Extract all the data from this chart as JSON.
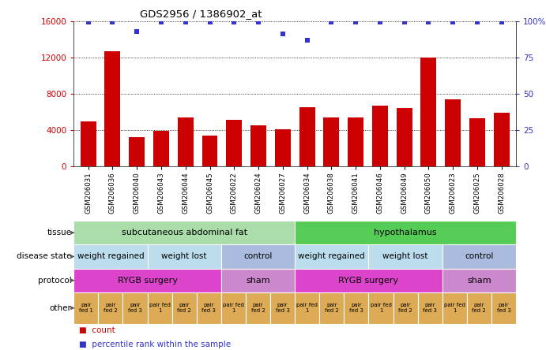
{
  "title": "GDS2956 / 1386902_at",
  "samples": [
    "GSM206031",
    "GSM206036",
    "GSM206040",
    "GSM206043",
    "GSM206044",
    "GSM206045",
    "GSM206022",
    "GSM206024",
    "GSM206027",
    "GSM206034",
    "GSM206038",
    "GSM206041",
    "GSM206046",
    "GSM206049",
    "GSM206050",
    "GSM206023",
    "GSM206025",
    "GSM206028"
  ],
  "counts": [
    5000,
    12700,
    3200,
    3900,
    5400,
    3400,
    5100,
    4500,
    4100,
    6500,
    5400,
    5400,
    6700,
    6400,
    12000,
    7400,
    5300,
    5900
  ],
  "percentile_ranks": [
    99,
    99,
    93,
    99,
    99,
    99,
    99,
    99,
    91,
    87,
    99,
    99,
    99,
    99,
    99,
    99,
    99,
    99
  ],
  "bar_color": "#cc0000",
  "dot_color": "#3333cc",
  "ylim_left": [
    0,
    16000
  ],
  "ylim_right": [
    0,
    100
  ],
  "yticks_left": [
    0,
    4000,
    8000,
    12000,
    16000
  ],
  "yticks_right": [
    0,
    25,
    50,
    75,
    100
  ],
  "ytick_labels_right": [
    "0",
    "25",
    "50",
    "75",
    "100%"
  ],
  "tissue_row": {
    "label": "tissue",
    "spans": [
      {
        "text": "subcutaneous abdominal fat",
        "start": 0,
        "end": 9,
        "color": "#aaddaa"
      },
      {
        "text": "hypothalamus",
        "start": 9,
        "end": 18,
        "color": "#55cc55"
      }
    ]
  },
  "disease_state_row": {
    "label": "disease state",
    "spans": [
      {
        "text": "weight regained",
        "start": 0,
        "end": 3,
        "color": "#bbddee"
      },
      {
        "text": "weight lost",
        "start": 3,
        "end": 6,
        "color": "#bbddee"
      },
      {
        "text": "control",
        "start": 6,
        "end": 9,
        "color": "#aabbdd"
      },
      {
        "text": "weight regained",
        "start": 9,
        "end": 12,
        "color": "#bbddee"
      },
      {
        "text": "weight lost",
        "start": 12,
        "end": 15,
        "color": "#bbddee"
      },
      {
        "text": "control",
        "start": 15,
        "end": 18,
        "color": "#aabbdd"
      }
    ]
  },
  "protocol_row": {
    "label": "protocol",
    "spans": [
      {
        "text": "RYGB surgery",
        "start": 0,
        "end": 6,
        "color": "#dd44cc"
      },
      {
        "text": "sham",
        "start": 6,
        "end": 9,
        "color": "#cc88cc"
      },
      {
        "text": "RYGB surgery",
        "start": 9,
        "end": 15,
        "color": "#dd44cc"
      },
      {
        "text": "sham",
        "start": 15,
        "end": 18,
        "color": "#cc88cc"
      }
    ]
  },
  "other_row": {
    "label": "other",
    "cells": [
      {
        "text": "pair\nfed 1",
        "color": "#ddaa55"
      },
      {
        "text": "pair\nfed 2",
        "color": "#ddaa55"
      },
      {
        "text": "pair\nfed 3",
        "color": "#ddaa55"
      },
      {
        "text": "pair fed\n1",
        "color": "#ddaa55"
      },
      {
        "text": "pair\nfed 2",
        "color": "#ddaa55"
      },
      {
        "text": "pair\nfed 3",
        "color": "#ddaa55"
      },
      {
        "text": "pair fed\n1",
        "color": "#ddaa55"
      },
      {
        "text": "pair\nfed 2",
        "color": "#ddaa55"
      },
      {
        "text": "pair\nfed 3",
        "color": "#ddaa55"
      },
      {
        "text": "pair fed\n1",
        "color": "#ddaa55"
      },
      {
        "text": "pair\nfed 2",
        "color": "#ddaa55"
      },
      {
        "text": "pair\nfed 3",
        "color": "#ddaa55"
      },
      {
        "text": "pair fed\n1",
        "color": "#ddaa55"
      },
      {
        "text": "pair\nfed 2",
        "color": "#ddaa55"
      },
      {
        "text": "pair\nfed 3",
        "color": "#ddaa55"
      },
      {
        "text": "pair fed\n1",
        "color": "#ddaa55"
      },
      {
        "text": "pair\nfed 2",
        "color": "#ddaa55"
      },
      {
        "text": "pair\nfed 3",
        "color": "#ddaa55"
      }
    ]
  },
  "legend_count_color": "#cc0000",
  "legend_pct_color": "#3333cc"
}
